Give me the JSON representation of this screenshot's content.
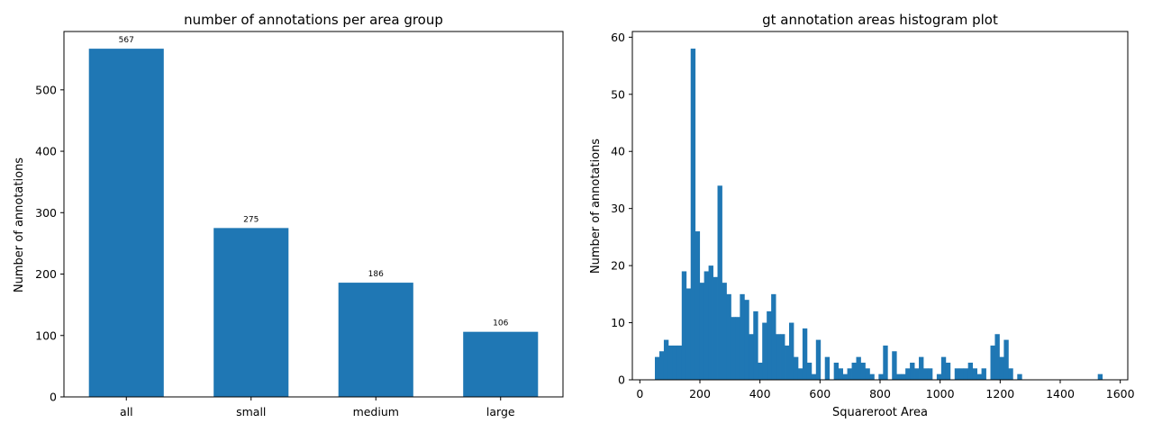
{
  "chart_data": [
    {
      "type": "bar",
      "title": "number of annotations per area group",
      "xlabel": "",
      "ylabel": "Number of annotations",
      "categories": [
        "all",
        "small",
        "medium",
        "large"
      ],
      "values": [
        567,
        275,
        186,
        106
      ],
      "data_labels": [
        "567",
        "275",
        "186",
        "106"
      ],
      "ylim": [
        0,
        595
      ],
      "yticks": [
        0,
        100,
        200,
        300,
        400,
        500
      ],
      "color": "#1f77b4",
      "grid": false
    },
    {
      "type": "bar",
      "title": "gt annotation areas histogram plot",
      "xlabel": "Squareroot Area",
      "ylabel": "Number of annotations",
      "xlim": [
        -25,
        1625
      ],
      "ylim": [
        0,
        61
      ],
      "xticks": [
        0,
        200,
        400,
        600,
        800,
        1000,
        1200,
        1400,
        1600
      ],
      "yticks": [
        0,
        10,
        20,
        30,
        40,
        50,
        60
      ],
      "bin_start": 50,
      "bin_width": 14.9,
      "counts": [
        4,
        5,
        7,
        6,
        6,
        6,
        19,
        16,
        58,
        26,
        17,
        19,
        20,
        18,
        34,
        17,
        15,
        11,
        11,
        15,
        14,
        8,
        12,
        3,
        10,
        12,
        15,
        8,
        8,
        6,
        10,
        4,
        2,
        9,
        3,
        1,
        7,
        0,
        4,
        0,
        3,
        2,
        1,
        2,
        3,
        4,
        3,
        2,
        1,
        0,
        1,
        6,
        0,
        5,
        1,
        1,
        2,
        3,
        2,
        4,
        2,
        2,
        0,
        1,
        4,
        3,
        0,
        2,
        2,
        2,
        3,
        2,
        1,
        2,
        0,
        6,
        8,
        4,
        7,
        2,
        0,
        1,
        0,
        0,
        0,
        0,
        0,
        0,
        0,
        0,
        0,
        0,
        0,
        0,
        0,
        0,
        0,
        0,
        0,
        1
      ],
      "color": "#1f77b4",
      "grid": false
    }
  ]
}
